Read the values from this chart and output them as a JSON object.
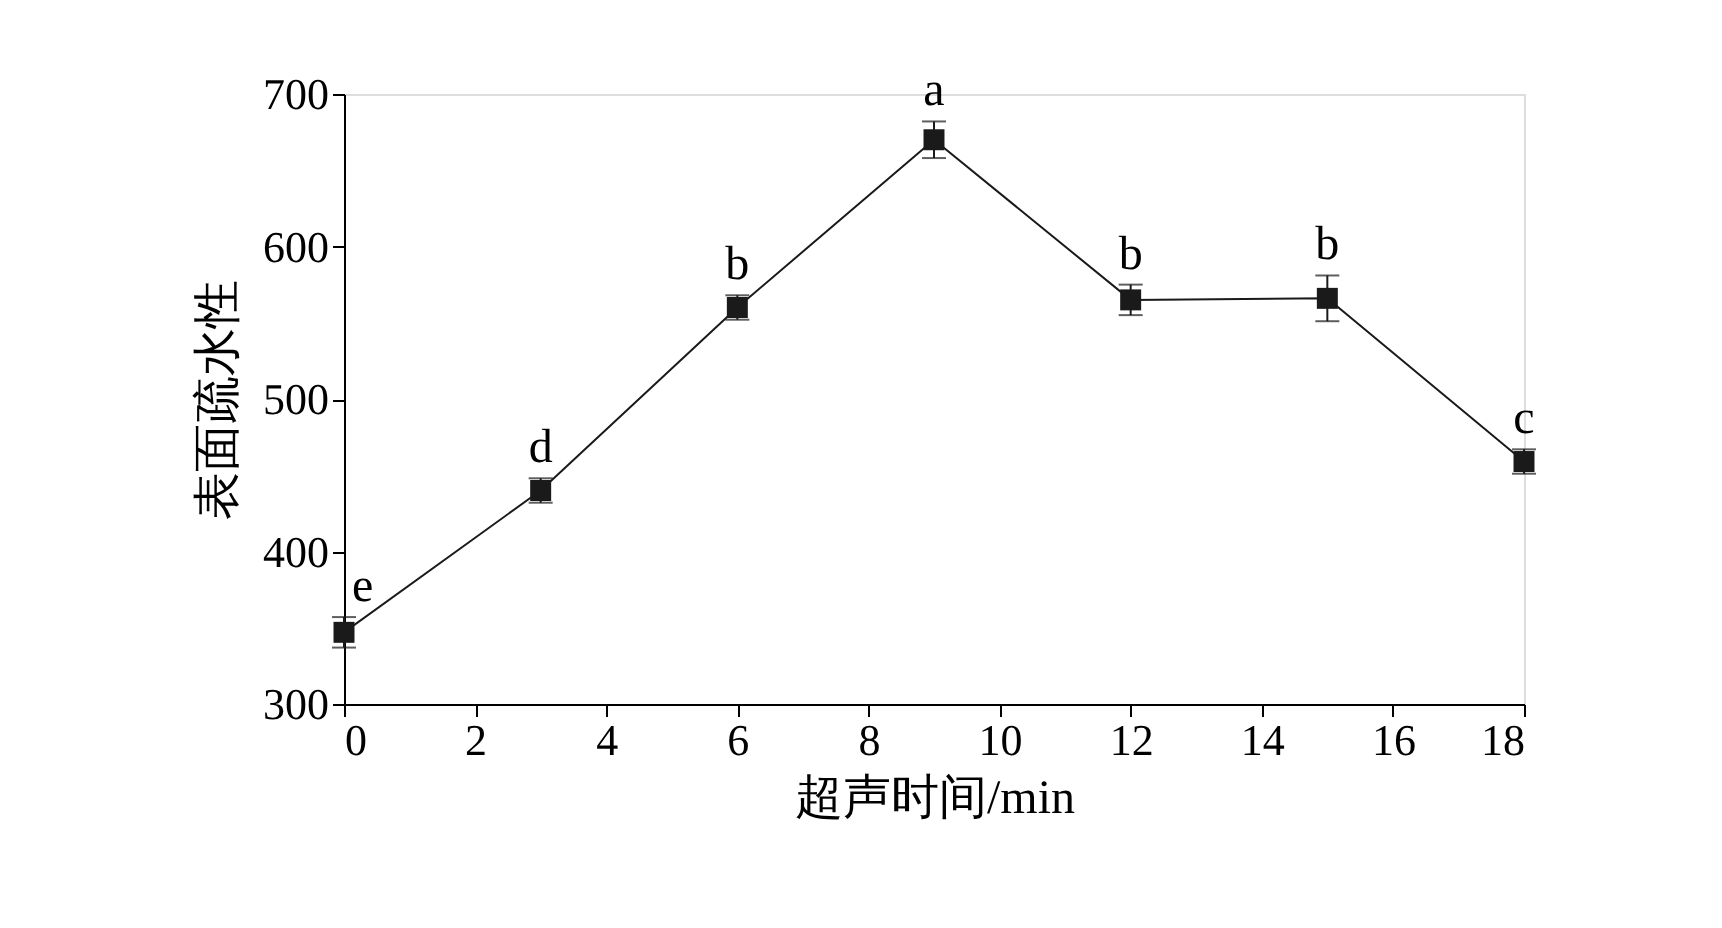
{
  "chart_data": {
    "type": "line",
    "xlabel": "超声时间/min",
    "ylabel": "表面疏水性",
    "x": [
      0,
      3,
      6,
      9,
      12,
      15,
      18
    ],
    "series": [
      {
        "color": "#1a1a1a",
        "values": [
          347,
          440,
          560,
          670,
          565,
          566,
          459
        ],
        "errors": [
          10,
          8,
          8,
          12,
          10,
          15,
          8
        ]
      }
    ],
    "xlim": [
      0,
      18
    ],
    "xticks": [
      0,
      2,
      4,
      6,
      8,
      10,
      12,
      14,
      16,
      18
    ],
    "ylim": [
      300,
      700
    ],
    "yticks": [
      300,
      400,
      500,
      600,
      700
    ],
    "grid": false,
    "marker": "square",
    "line_style": "solid",
    "annotations": [
      {
        "text": "e",
        "x": 0,
        "y": 347
      },
      {
        "text": "d",
        "x": 3,
        "y": 440
      },
      {
        "text": "b",
        "x": 6,
        "y": 560
      },
      {
        "text": "a",
        "x": 9,
        "y": 670
      },
      {
        "text": "b",
        "x": 12,
        "y": 565
      },
      {
        "text": "b",
        "x": 15,
        "y": 566
      },
      {
        "text": "c",
        "x": 18,
        "y": 459
      }
    ]
  }
}
